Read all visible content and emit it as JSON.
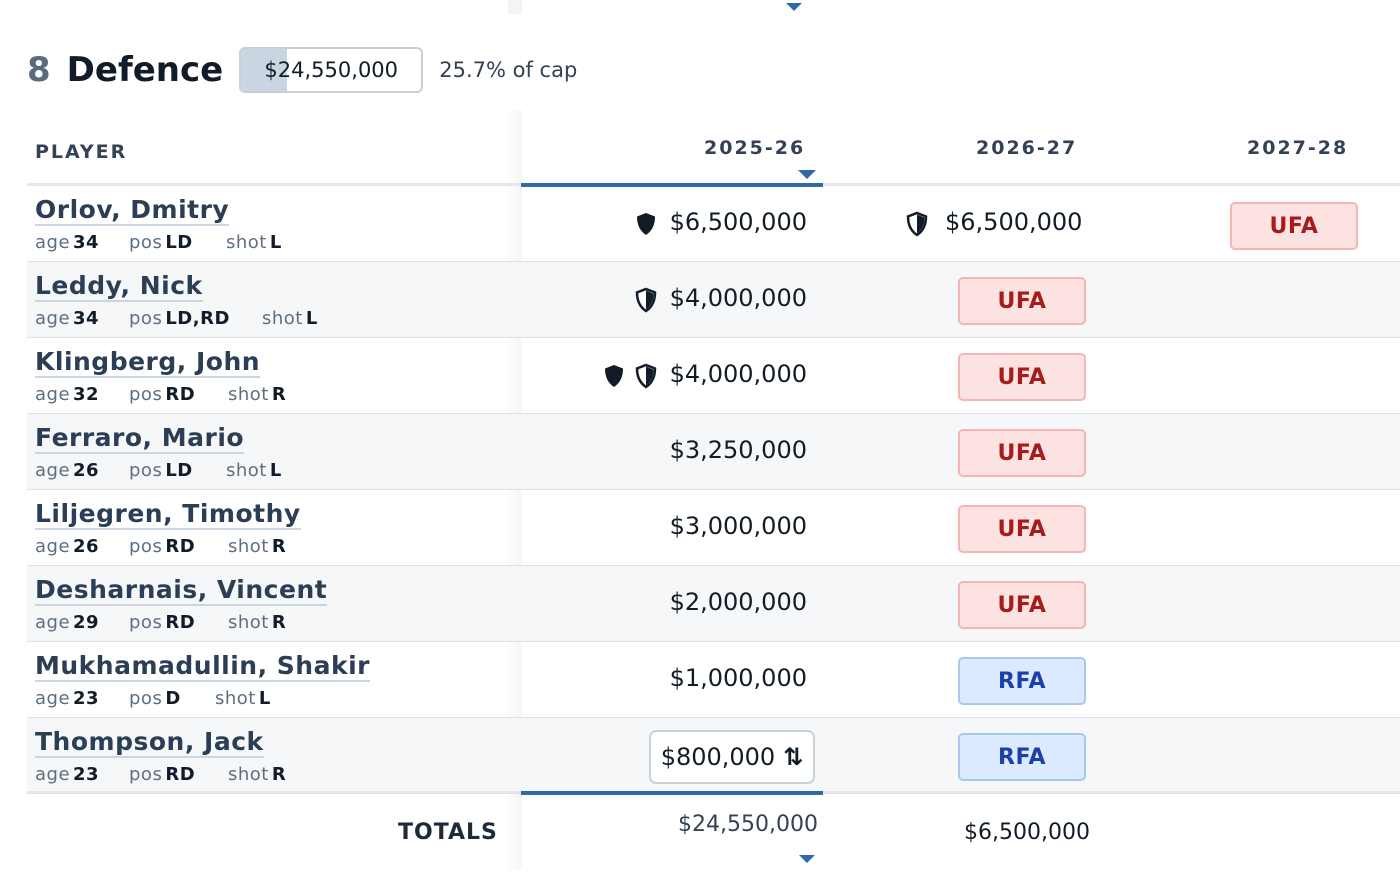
{
  "section": {
    "count": "8",
    "title": "Defence",
    "cap_hit": "$24,550,000",
    "cap_fill_fraction": 0.257,
    "cap_pct_label": "25.7% of cap"
  },
  "columns": {
    "player": "PLAYER",
    "seasons": [
      "2025-26",
      "2026-27",
      "2027-28"
    ]
  },
  "meta_labels": {
    "age": "age",
    "pos": "pos",
    "shot": "shot"
  },
  "players": [
    {
      "name": "Orlov, Dmitry",
      "age": "34",
      "pos": "LD",
      "shot": "L",
      "s1": "$6,500,000",
      "s1_icons": [
        "shield-full-icon"
      ],
      "s2": "$6,500,000",
      "s2_icons": [
        "shield-half-icon"
      ],
      "s3_badge": "UFA"
    },
    {
      "name": "Leddy, Nick",
      "age": "34",
      "pos": "LD,RD",
      "shot": "L",
      "s1": "$4,000,000",
      "s1_icons": [
        "shield-half-icon"
      ],
      "s2_badge": "UFA"
    },
    {
      "name": "Klingberg, John",
      "age": "32",
      "pos": "RD",
      "shot": "R",
      "s1": "$4,000,000",
      "s1_icons": [
        "shield-full-icon",
        "shield-half-icon"
      ],
      "s2_badge": "UFA"
    },
    {
      "name": "Ferraro, Mario",
      "age": "26",
      "pos": "LD",
      "shot": "L",
      "s1": "$3,250,000",
      "s2_badge": "UFA"
    },
    {
      "name": "Liljegren, Timothy",
      "age": "26",
      "pos": "RD",
      "shot": "R",
      "s1": "$3,000,000",
      "s2_badge": "UFA"
    },
    {
      "name": "Desharnais, Vincent",
      "age": "29",
      "pos": "RD",
      "shot": "R",
      "s1": "$2,000,000",
      "s2_badge": "UFA"
    },
    {
      "name": "Mukhamadullin, Shakir",
      "age": "23",
      "pos": "D",
      "shot": "L",
      "s1": "$1,000,000",
      "s2_badge": "RFA"
    },
    {
      "name": "Thompson, Jack",
      "age": "23",
      "pos": "RD",
      "shot": "R",
      "s1": "$800,000",
      "s1_editable": true,
      "s1_edit_icon": "sort-arrows-icon",
      "s2_badge": "RFA"
    }
  ],
  "totals": {
    "label": "TOTALS",
    "s1": "$24,550,000",
    "s2": "$6,500,000"
  },
  "colors": {
    "accent": "#2f6aa8",
    "ufa_text": "#a61c1c",
    "rfa_text": "#1e3fa8"
  }
}
